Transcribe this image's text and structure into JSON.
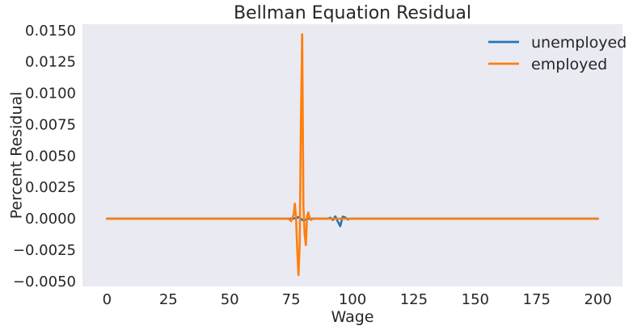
{
  "chart_data": {
    "type": "line",
    "title": "Bellman Equation Residual",
    "xlabel": "Wage",
    "ylabel": "Percent Residual",
    "xlim": [
      -10,
      210
    ],
    "ylim": [
      -0.0054,
      0.0155
    ],
    "xticks": [
      {
        "value": 0,
        "label": "0"
      },
      {
        "value": 25,
        "label": "25"
      },
      {
        "value": 50,
        "label": "50"
      },
      {
        "value": 75,
        "label": "75"
      },
      {
        "value": 100,
        "label": "100"
      },
      {
        "value": 125,
        "label": "125"
      },
      {
        "value": 150,
        "label": "150"
      },
      {
        "value": 175,
        "label": "175"
      },
      {
        "value": 200,
        "label": "200"
      }
    ],
    "yticks": [
      {
        "value": 0.015,
        "label": "0.0150"
      },
      {
        "value": 0.0125,
        "label": "0.0125"
      },
      {
        "value": 0.01,
        "label": "0.0100"
      },
      {
        "value": 0.0075,
        "label": "0.0075"
      },
      {
        "value": 0.005,
        "label": "0.0050"
      },
      {
        "value": 0.0025,
        "label": "0.0025"
      },
      {
        "value": 0,
        "label": "0.0000"
      },
      {
        "value": -0.0025,
        "label": "−0.0025"
      },
      {
        "value": -0.005,
        "label": "−0.0050"
      }
    ],
    "grid": false,
    "legend_position": "top-right",
    "background_color": "#eaeaf2",
    "series": [
      {
        "name": "unemployed",
        "color": "#1f77b4",
        "x": [
          0,
          76,
          78,
          80,
          82,
          90,
          91,
          92,
          93,
          94,
          95,
          96,
          97,
          98,
          99,
          200
        ],
        "y": [
          0,
          0,
          0.00012,
          -0.00015,
          0,
          0,
          8e-05,
          -0.0001,
          0.00018,
          -0.00022,
          -0.0006,
          0.00016,
          0.0001,
          -6e-05,
          0,
          0
        ]
      },
      {
        "name": "employed",
        "color": "#ff7f0e",
        "x": [
          0,
          74,
          75,
          76,
          76.5,
          77,
          77.5,
          78,
          78.5,
          79,
          79.5,
          80,
          80.5,
          81,
          81.5,
          82,
          82.5,
          83,
          84,
          200
        ],
        "y": [
          0,
          0,
          -0.0002,
          0.0003,
          0.0012,
          0.0001,
          -0.0025,
          -0.0045,
          -0.002,
          0.008,
          0.0147,
          0.001,
          -0.0012,
          -0.0021,
          0.0002,
          0.0005,
          0.0001,
          -0.0001,
          0,
          0
        ]
      }
    ]
  }
}
